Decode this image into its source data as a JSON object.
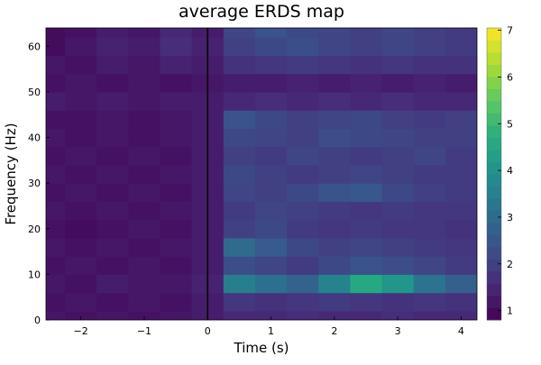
{
  "chart_data": {
    "type": "heatmap",
    "title": "average ERDS map",
    "xlabel": "Time (s)",
    "ylabel": "Frequency (Hz)",
    "xlim": [
      -2.55,
      4.25
    ],
    "ylim": [
      0,
      64
    ],
    "x_ticks": [
      -2,
      -1,
      0,
      1,
      2,
      3,
      4
    ],
    "x_tick_labels": [
      "−2",
      "−1",
      "0",
      "1",
      "2",
      "3",
      "4"
    ],
    "y_ticks": [
      0,
      10,
      20,
      30,
      40,
      50,
      60
    ],
    "y_tick_labels": [
      "0",
      "10",
      "20",
      "30",
      "40",
      "50",
      "60"
    ],
    "event_line_x": 0,
    "colorbar": {
      "colormap": "viridis",
      "range": [
        0.8,
        7.05
      ],
      "ticks": [
        1,
        2,
        3,
        4,
        5,
        6,
        7
      ],
      "tick_labels": [
        "1",
        "2",
        "3",
        "4",
        "5",
        "6",
        "7"
      ]
    },
    "grid": false,
    "legend": "none",
    "time_points": [
      -2.5,
      -2.0,
      -1.5,
      -1.0,
      -0.5,
      0.0,
      0.5,
      1.0,
      1.5,
      2.0,
      2.5,
      3.0,
      3.5,
      4.0
    ],
    "freq_points": [
      0,
      4,
      8,
      12,
      16,
      20,
      24,
      28,
      32,
      36,
      40,
      44,
      48,
      52,
      56,
      60,
      64
    ],
    "values": [
      [
        1.2,
        1.1,
        1.2,
        1.1,
        1.2,
        1.3,
        1.5,
        1.5,
        1.6,
        1.5,
        1.5,
        1.6,
        1.5,
        1.5
      ],
      [
        1.1,
        1.2,
        1.1,
        1.2,
        1.1,
        1.3,
        1.8,
        1.7,
        1.8,
        1.9,
        1.8,
        1.7,
        1.8,
        1.7
      ],
      [
        1.2,
        1.1,
        1.3,
        1.2,
        1.2,
        1.4,
        3.5,
        3.1,
        2.8,
        3.6,
        4.6,
        4.1,
        3.2,
        2.7
      ],
      [
        1.1,
        1.2,
        1.1,
        1.2,
        1.1,
        1.3,
        2.3,
        2.1,
        1.9,
        2.2,
        2.4,
        2.3,
        2.1,
        1.9
      ],
      [
        1.2,
        1.1,
        1.2,
        1.1,
        1.2,
        1.3,
        3.0,
        2.6,
        2.2,
        2.0,
        2.1,
        2.0,
        1.9,
        1.8
      ],
      [
        1.1,
        1.0,
        1.1,
        1.2,
        1.1,
        1.3,
        2.0,
        2.2,
        1.9,
        1.8,
        1.9,
        1.8,
        1.8,
        1.7
      ],
      [
        1.2,
        1.1,
        1.2,
        1.1,
        1.2,
        1.3,
        1.9,
        2.1,
        2.0,
        1.9,
        1.8,
        1.9,
        1.8,
        1.8
      ],
      [
        1.1,
        1.2,
        1.1,
        1.2,
        1.1,
        1.3,
        2.1,
        2.0,
        2.2,
        2.4,
        2.5,
        2.2,
        2.0,
        1.9
      ],
      [
        1.2,
        1.1,
        1.2,
        1.1,
        1.2,
        1.3,
        2.2,
        2.0,
        1.9,
        2.0,
        2.1,
        2.0,
        1.9,
        1.9
      ],
      [
        1.1,
        1.2,
        1.1,
        1.2,
        1.1,
        1.3,
        2.0,
        1.9,
        2.1,
        2.0,
        1.9,
        2.0,
        2.1,
        1.9
      ],
      [
        1.2,
        1.1,
        1.2,
        1.1,
        1.2,
        1.3,
        2.2,
        2.1,
        2.0,
        2.3,
        2.2,
        2.1,
        2.0,
        2.0
      ],
      [
        1.1,
        1.1,
        1.2,
        1.1,
        1.2,
        1.3,
        2.4,
        2.2,
        2.0,
        2.1,
        2.2,
        2.0,
        1.9,
        2.0
      ],
      [
        1.3,
        1.2,
        1.3,
        1.2,
        1.3,
        1.3,
        1.5,
        1.6,
        1.5,
        1.6,
        1.5,
        1.6,
        1.5,
        1.5
      ],
      [
        1.1,
        1.2,
        1.1,
        1.2,
        1.1,
        1.2,
        1.3,
        1.3,
        1.4,
        1.3,
        1.4,
        1.3,
        1.4,
        1.3
      ],
      [
        1.2,
        1.1,
        1.3,
        1.2,
        1.4,
        1.3,
        1.7,
        1.8,
        1.9,
        1.8,
        1.7,
        1.8,
        1.7,
        1.7
      ],
      [
        1.0,
        1.2,
        1.4,
        1.3,
        1.6,
        1.4,
        2.0,
        2.2,
        2.3,
        2.1,
        2.0,
        2.1,
        2.0,
        1.9
      ],
      [
        1.0,
        1.1,
        1.3,
        1.2,
        1.5,
        1.3,
        2.1,
        2.4,
        2.2,
        2.1,
        2.0,
        2.1,
        2.0,
        1.9
      ]
    ]
  }
}
